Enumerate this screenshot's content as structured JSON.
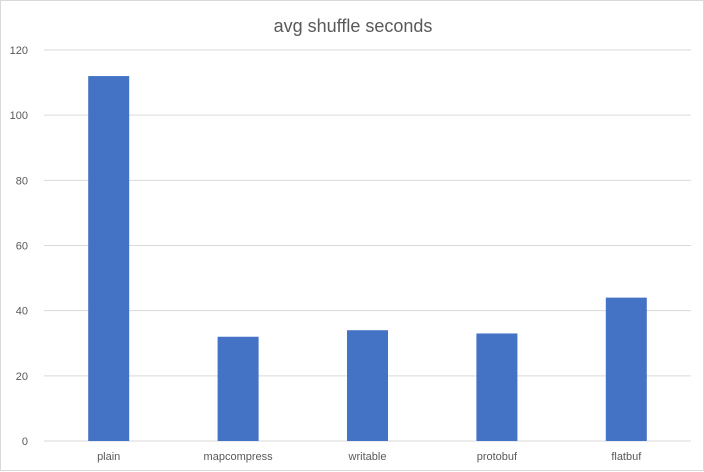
{
  "chart_data": {
    "type": "bar",
    "title": "avg shuffle seconds",
    "xlabel": "",
    "ylabel": "",
    "categories": [
      "plain",
      "mapcompress",
      "writable",
      "protobuf",
      "flatbuf"
    ],
    "values": [
      112,
      32,
      34,
      33,
      44
    ],
    "ylim": [
      0,
      120
    ],
    "yticks": [
      0,
      20,
      40,
      60,
      80,
      100,
      120
    ],
    "grid": true,
    "legend": "none",
    "bar_color": "#4472c4",
    "grid_color": "#d9d9d9",
    "text_color": "#595959"
  }
}
